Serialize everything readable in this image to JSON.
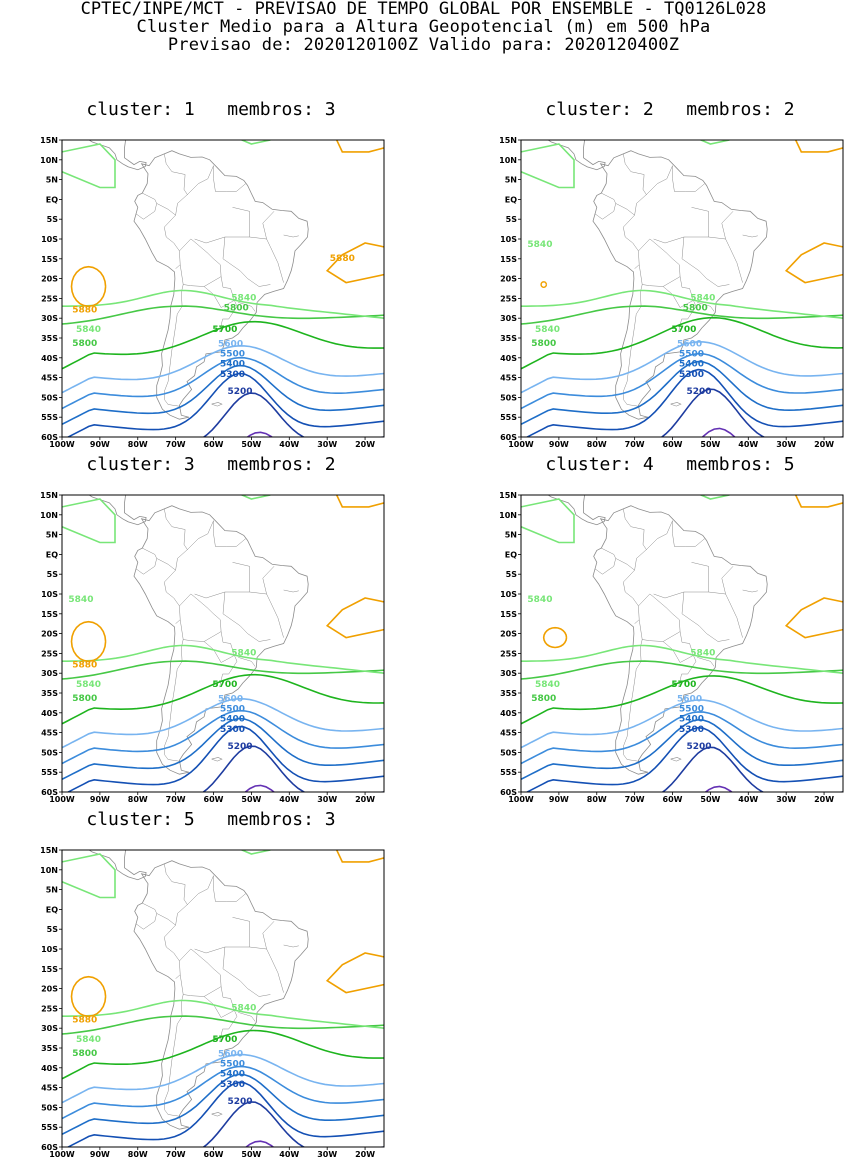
{
  "header": {
    "line1": "CPTEC/INPE/MCT - PREVISAO DE TEMPO GLOBAL POR ENSEMBLE - TQ0126L028",
    "line2": "Cluster Medio para a Altura Geopotencial (m) em 500 hPa",
    "line3": "Previsao de: 2020120100Z   Valido para: 2020120400Z"
  },
  "axes": {
    "lat_labels": [
      "15N",
      "10N",
      "5N",
      "EQ",
      "5S",
      "10S",
      "15S",
      "20S",
      "25S",
      "30S",
      "35S",
      "40S",
      "45S",
      "50S",
      "55S",
      "60S"
    ],
    "lon_labels": [
      "100W",
      "90W",
      "80W",
      "70W",
      "60W",
      "50W",
      "40W",
      "30W",
      "20W"
    ]
  },
  "colors": {
    "5880": "#f0a000",
    "5840": "#78e678",
    "5800": "#46c846",
    "5700": "#1eb41e",
    "5600": "#78b4f0",
    "5500": "#3c8cdc",
    "5400": "#1e6ec8",
    "5300": "#1450b4",
    "5200": "#1e3ca0",
    "5100": "#6432b4",
    "coast": "#8c8c8c"
  },
  "panels": [
    {
      "title": "cluster: 1   membros: 3",
      "labels": [
        "5880",
        "5840",
        "5800",
        "5840",
        "5800",
        "5880",
        "5700",
        "5600",
        "5500",
        "5400",
        "5300",
        "5200"
      ]
    },
    {
      "title": "cluster: 2   membros: 2",
      "labels": [
        "5840",
        "5840",
        "5800",
        "5840",
        "5800",
        "5700",
        "5600",
        "5500",
        "5400",
        "5300",
        "5200"
      ]
    },
    {
      "title": "cluster: 3   membros: 2",
      "labels": [
        "5840",
        "5880",
        "5840",
        "5800",
        "5840",
        "5700",
        "5600",
        "5500",
        "5400",
        "5300",
        "5200"
      ]
    },
    {
      "title": "cluster: 4   membros: 5",
      "labels": [
        "5840",
        "5840",
        "5800",
        "5840",
        "5700",
        "5600",
        "5500",
        "5400",
        "5300",
        "5200"
      ]
    },
    {
      "title": "cluster: 5   membros: 3",
      "labels": [
        "5880",
        "5840",
        "5840",
        "5800",
        "5700",
        "5600",
        "5500",
        "5400",
        "5300",
        "5200"
      ]
    }
  ]
}
